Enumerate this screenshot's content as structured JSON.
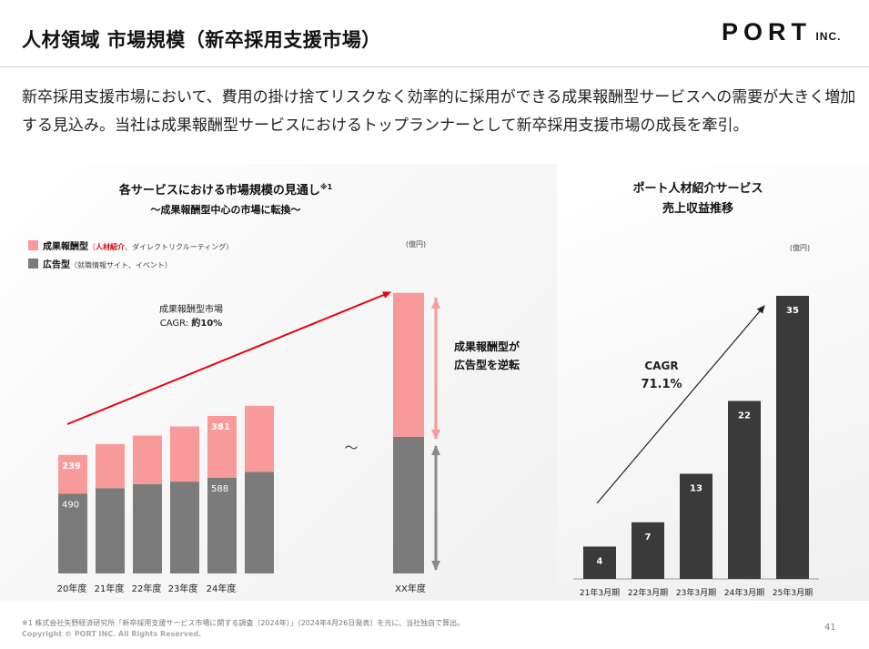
{
  "header": {
    "title": "人材領域 市場規模（新卒採用支援市場）",
    "logo_main": "PORT",
    "logo_sub": "INC."
  },
  "lead": "新卒採用支援市場において、費用の掛け捨てリスクなく効率的に採用ができる成果報酬型サービスへの需要が大きく増加する見込み。当社は成果報酬型サービスにおけるトップランナーとして新卒採用支援市場の成長を牽引。",
  "colors": {
    "performance": "#f8999a",
    "advertising": "#7b7b7b",
    "revenue": "#3a3a3a",
    "highlight": "#e60012"
  },
  "chart_data": [
    {
      "type": "bar",
      "stacked": true,
      "title": "各サービスにおける市場規模の見通し",
      "title_note": "※1",
      "subtitle": "～成果報酬型中心の市場に転換～",
      "unit": "(億円)",
      "categories": [
        "20年度",
        "21年度",
        "22年度",
        "23年度",
        "24年度",
        "",
        "XX年度"
      ],
      "series": [
        {
          "name": "広告型",
          "values": [
            490,
            525,
            550,
            565,
            588,
            625,
            840
          ]
        },
        {
          "name": "成果報酬型",
          "values": [
            239,
            271,
            298,
            339,
            381,
            406,
            886
          ]
        }
      ],
      "data_labels": {
        "advertising": {
          "20年度": "490",
          "24年度": "588"
        },
        "performance": {
          "20年度": "239",
          "24年度": "381"
        }
      },
      "ylim": [
        0,
        1800
      ],
      "legend": [
        {
          "key": "performance",
          "label": "成果報酬型",
          "prefix": "（",
          "highlight": "人材紹介",
          "rest": "、ダイレクトリクルーティング）"
        },
        {
          "key": "advertising",
          "label": "広告型",
          "prefix": "（",
          "highlight": "",
          "rest": "就職情報サイト、イベント）"
        }
      ],
      "legend_position": "top-left",
      "cagr_label_1": "成果報酬型市場",
      "cagr_label_2_prefix": "CAGR: ",
      "cagr_label_2_value": "約10%",
      "gap_marker": "～",
      "callout_1": "成果報酬型が",
      "callout_2": "広告型を逆転"
    },
    {
      "type": "bar",
      "title_1": "ポート人材紹介サービス",
      "title_2": "売上収益推移",
      "unit": "(億円)",
      "categories": [
        "21年3月期",
        "22年3月期",
        "23年3月期",
        "24年3月期",
        "25年3月期"
      ],
      "values": [
        4,
        7,
        13,
        22,
        35
      ],
      "ylim": [
        0,
        36
      ],
      "cagr_label": "CAGR",
      "cagr_value": "71.1%"
    }
  ],
  "footer": {
    "note": "※1 株式会社矢野経済研究所「新卒採用支援サービス市場に関する調査（2024年）」（2024年4月26日発表）を元に、当社独自で算出。",
    "copyright": "Copyright © PORT INC. All Rights Reserved.",
    "page": "41"
  }
}
